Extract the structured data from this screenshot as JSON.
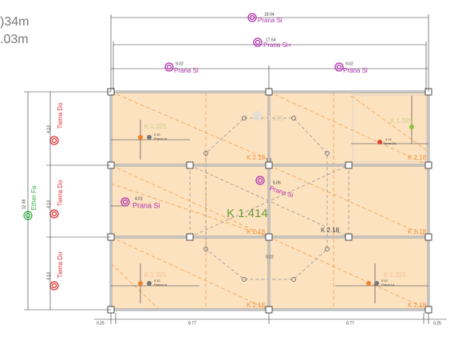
{
  "corner_labels": [
    ")34m",
    ".03m"
  ],
  "top_dimensions": [
    {
      "value": "18.04",
      "label": "Prana Si"
    },
    {
      "value": "17.54",
      "label": "Prana Si+"
    },
    {
      "value": "9.02",
      "label": "Prana Si"
    },
    {
      "value": "9.02",
      "label": "Prana Si"
    }
  ],
  "left_dimensions": [
    {
      "value": "4.13",
      "label": "Tierra Do"
    },
    {
      "value": "4.13",
      "label": "Tierra Do"
    },
    {
      "value": "4.13",
      "label": "Tierra Do"
    }
  ],
  "outer_dimension": {
    "value": "12.48",
    "label": "Ether Fa"
  },
  "bottom_dimensions": [
    "0.25",
    "8.77",
    "8.77",
    "0.25"
  ],
  "panel_labels": [
    "K 1.325",
    "K 1.325",
    "K 1.325",
    "K 1.325",
    "K 1.325"
  ],
  "beam_labels": [
    "K 2.18",
    "K 2.18",
    "K 2.18",
    "K 2.18",
    "K 2.18",
    "K 2.18",
    "K 2.18"
  ],
  "center_label": "K 1.414",
  "point_labels": [
    {
      "value": "4.01",
      "label": "Prana Si"
    },
    {
      "value": "5.06",
      "label": "Prana Si"
    }
  ],
  "small_labels": [
    {
      "value": "0.10",
      "label": "Prana La"
    },
    {
      "value": "4.12",
      "label": "Tierra Do"
    },
    {
      "value": "0.10",
      "label": "Prana La"
    },
    {
      "value": "0.10",
      "label": "Prana La"
    }
  ],
  "center_gap": "0.22"
}
